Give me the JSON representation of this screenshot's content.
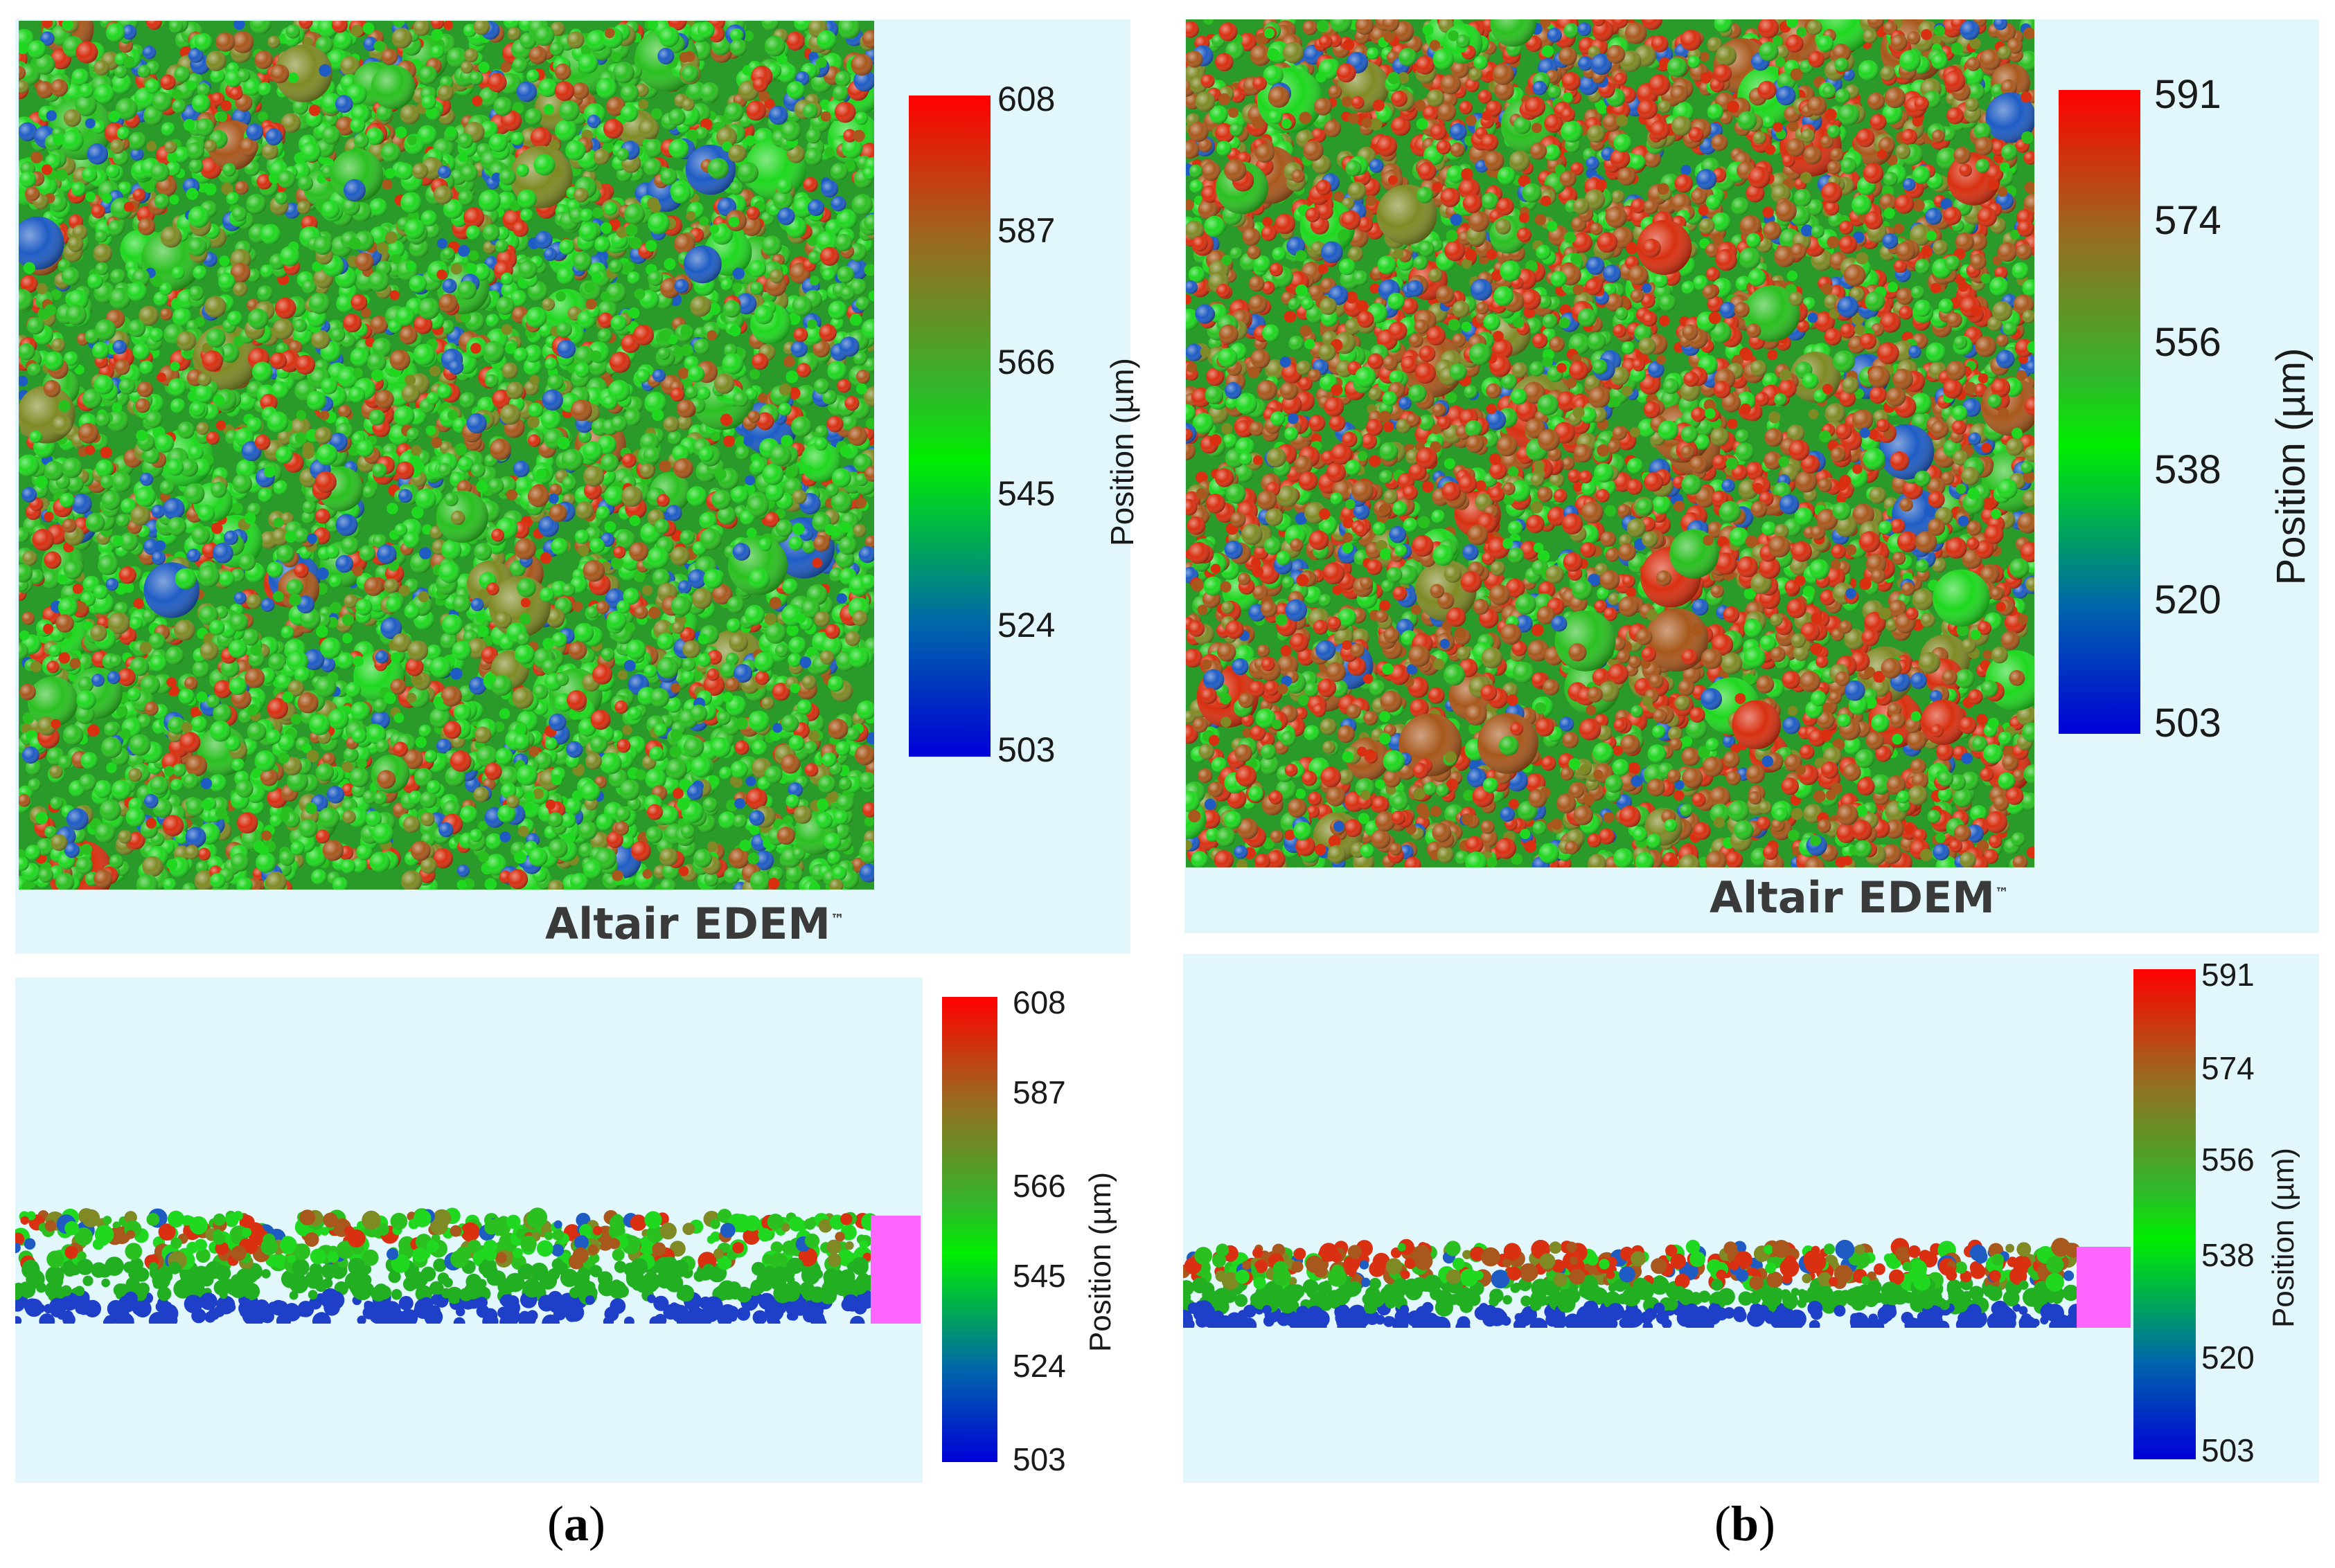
{
  "colors": {
    "background": "#e1f7fb",
    "scale": [
      "#0000d8",
      "#0066aa",
      "#00ee00",
      "#2fb82a",
      "#9a6a20",
      "#ff0000"
    ],
    "substrate": "#ff66ff",
    "loose_particle": "#d8d6c4"
  },
  "panels": [
    {
      "id": "a",
      "sublabel": "a",
      "brand": "Altair EDEM",
      "trademark": "™",
      "red_fraction": 0.18,
      "top_view": {
        "scale_ticks": [
          "608",
          "587",
          "566",
          "545",
          "524",
          "503"
        ],
        "scale_min": 503,
        "scale_max": 608,
        "axis_label": "Position (µm)"
      },
      "side_view": {
        "scale_ticks": [
          "608",
          "587",
          "566",
          "545",
          "524",
          "503"
        ],
        "scale_min": 503,
        "scale_max": 608,
        "axis_label": "Position (µm)"
      }
    },
    {
      "id": "b",
      "sublabel": "b",
      "brand": "Altair EDEM",
      "trademark": "™",
      "red_fraction": 0.55,
      "top_view": {
        "scale_ticks": [
          "591",
          "574",
          "556",
          "538",
          "520",
          "503"
        ],
        "scale_min": 503,
        "scale_max": 591,
        "axis_label": "Position (µm)"
      },
      "side_view": {
        "scale_ticks": [
          "591",
          "574",
          "556",
          "538",
          "520",
          "503"
        ],
        "scale_min": 503,
        "scale_max": 591,
        "axis_label": "Position (µm)"
      }
    }
  ]
}
